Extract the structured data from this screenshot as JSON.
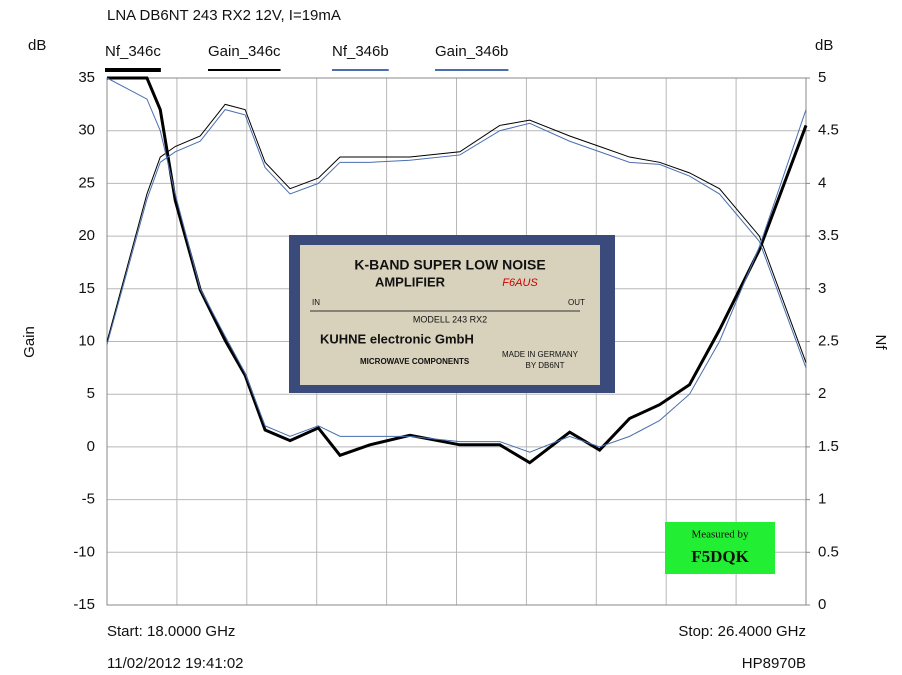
{
  "chart_data": {
    "type": "line",
    "title": "LNA DB6NT 243 RX2 12V, I=19mA",
    "y_unit": "dB",
    "y2_unit": "dB",
    "ylabel": "Gain",
    "y2label": "Nf",
    "start_label": "Start: 18.0000 GHz",
    "stop_label": "Stop: 26.4000 GHz",
    "timestamp": "11/02/2012 19:41:02",
    "instrument": "HP8970B",
    "xlim": [
      18,
      26.4
    ],
    "ylim": [
      -15,
      35
    ],
    "yticks": [
      -15,
      -10,
      -5,
      0,
      5,
      10,
      15,
      20,
      25,
      30,
      35
    ],
    "y2lim": [
      0,
      5
    ],
    "y2ticks": [
      0,
      0.5,
      1,
      1.5,
      2,
      2.5,
      3,
      3.5,
      4,
      4.5,
      5
    ],
    "grid": true,
    "x": [
      18.0,
      18.48,
      18.64,
      18.82,
      19.12,
      19.42,
      19.66,
      19.9,
      20.2,
      20.54,
      20.8,
      21.16,
      21.64,
      22.24,
      22.72,
      23.08,
      23.56,
      23.92,
      24.28,
      24.64,
      25.0,
      25.36,
      25.84,
      26.4
    ],
    "series": [
      {
        "name": "Nf_346c",
        "color": "#000000",
        "width": 3,
        "axis": "y2",
        "values": [
          5.0,
          5.0,
          4.7,
          3.84,
          2.99,
          2.51,
          2.18,
          1.66,
          1.56,
          1.68,
          1.42,
          1.52,
          1.61,
          1.52,
          1.52,
          1.35,
          1.64,
          1.47,
          1.77,
          1.9,
          2.09,
          2.61,
          3.37,
          4.55
        ]
      },
      {
        "name": "Gain_346c",
        "color": "#000000",
        "width": 1,
        "axis": "y",
        "values": [
          10,
          24,
          27.5,
          28.5,
          29.5,
          32.5,
          32,
          27,
          24.5,
          25.5,
          27.5,
          27.5,
          27.5,
          28,
          30.5,
          31,
          29.5,
          28.5,
          27.5,
          27,
          26,
          24.5,
          20,
          8
        ]
      },
      {
        "name": "Nf_346b",
        "color": "#4a6fb0",
        "width": 1,
        "axis": "y2",
        "values": [
          5.0,
          4.8,
          4.5,
          3.9,
          3.0,
          2.55,
          2.2,
          1.7,
          1.6,
          1.7,
          1.6,
          1.6,
          1.6,
          1.55,
          1.55,
          1.45,
          1.6,
          1.5,
          1.6,
          1.75,
          2.0,
          2.5,
          3.4,
          4.7
        ]
      },
      {
        "name": "Gain_346b",
        "color": "#4a6fb0",
        "width": 1,
        "axis": "y",
        "values": [
          9.7,
          23.5,
          27,
          28,
          29,
          32,
          31.5,
          26.5,
          24,
          25,
          27,
          27,
          27.2,
          27.7,
          30,
          30.7,
          29,
          28,
          27,
          26.8,
          25.7,
          24,
          19.5,
          7.5
        ]
      }
    ],
    "photo_texts": [
      "K-BAND SUPER LOW NOISE",
      "AMPLIFIER",
      "F6AUS",
      "IN",
      "OUT",
      "MODELL 243 RX2",
      "KUHNE electronic GmbH",
      "MICROWAVE COMPONENTS",
      "MADE IN GERMANY",
      "BY DB6NT"
    ],
    "badge": [
      "Measured by",
      "F5DQK"
    ]
  }
}
